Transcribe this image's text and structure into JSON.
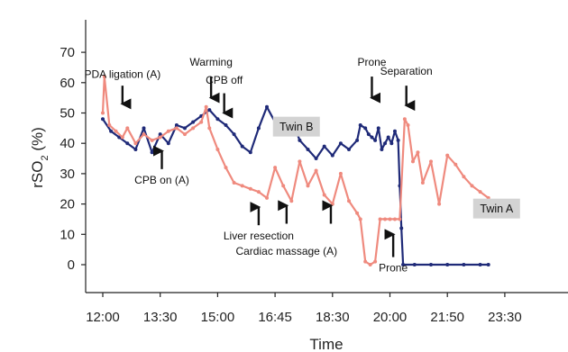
{
  "chart_data": {
    "type": "line",
    "xlabel": "Time",
    "ylabel": "rSO2 (%)",
    "x_ticks": [
      "12:00",
      "13:30",
      "15:00",
      "16:45",
      "18:30",
      "20:00",
      "21:50",
      "23:30"
    ],
    "ylim": [
      -10,
      70
    ],
    "y_ticks": [
      0,
      10,
      20,
      30,
      40,
      50,
      60,
      70
    ],
    "grid": false,
    "colors": {
      "twin_b": "#1f2a78",
      "twin_a": "#ef8a7e"
    },
    "series_labels": [
      {
        "name": "Twin B",
        "series": "twin_b",
        "x": 17.9,
        "y": 45.5
      },
      {
        "name": "Twin A",
        "series": "twin_a",
        "x": 24.0,
        "y": 18.5
      }
    ],
    "annotations": [
      {
        "text": "PDA ligation (A)",
        "x": 12.6,
        "y": 61,
        "arrow_from": 59,
        "arrow_to": 53,
        "label_pos": "above"
      },
      {
        "text": "CPB on (A)",
        "x": 13.8,
        "y": 31.5,
        "arrow_from": 31.5,
        "arrow_to": 37.5,
        "label_pos": "below"
      },
      {
        "text": "Warming",
        "x": 15.3,
        "y": 65,
        "arrow_from": 62,
        "arrow_to": 55,
        "label_pos": "above"
      },
      {
        "text": "CPB off",
        "x": 15.7,
        "y": 59,
        "arrow_from": 56.5,
        "arrow_to": 50,
        "label_pos": "above"
      },
      {
        "text": "Liver resection",
        "x": 16.75,
        "y": 13,
        "arrow_from": 13,
        "arrow_to": 19,
        "label_pos": "below"
      },
      {
        "text": "Cardiac massage (A)",
        "x": 17.6,
        "y": 8,
        "arrow_from": 13.5,
        "arrow_to": 19.5,
        "label_pos": "below",
        "extra_arrows_x": [
          18.95
        ]
      },
      {
        "text": "Prone",
        "x": 20.2,
        "y": 65,
        "arrow_from": 62,
        "arrow_to": 55,
        "label_pos": "above"
      },
      {
        "text": "Separation",
        "x": 21.25,
        "y": 62,
        "arrow_from": 59,
        "arrow_to": 52.5,
        "label_pos": "above"
      },
      {
        "text": "Prone",
        "x": 20.85,
        "y": 2.5,
        "arrow_from": 2.5,
        "arrow_to": 10,
        "label_pos": "below"
      }
    ],
    "series": [
      {
        "key": "twin_b",
        "name": "Twin B",
        "x": [
          12.0,
          12.25,
          12.5,
          12.75,
          13.0,
          13.25,
          13.5,
          13.75,
          14.0,
          14.25,
          14.5,
          14.75,
          15.0,
          15.25,
          15.5,
          15.75,
          16.0,
          16.25,
          16.5,
          16.75,
          17.0,
          17.25,
          17.5,
          17.75,
          18.0,
          18.25,
          18.5,
          18.75,
          19.0,
          19.25,
          19.5,
          19.75,
          19.85,
          20.0,
          20.1,
          20.2,
          20.3,
          20.4,
          20.5,
          20.6,
          20.7,
          20.8,
          20.9,
          21.0,
          21.05,
          21.1,
          21.15,
          21.5,
          22.0,
          22.5,
          23.0,
          23.5,
          23.75
        ],
        "y": [
          48,
          44,
          42,
          40,
          38,
          45,
          37,
          43,
          40,
          46,
          45,
          47,
          49,
          51,
          48,
          46,
          43,
          39,
          37,
          45,
          52,
          47,
          43,
          48,
          41,
          38,
          35,
          39,
          36,
          40,
          38,
          41,
          46,
          45,
          43,
          42,
          41,
          45,
          38,
          40,
          42,
          40,
          44,
          41,
          26,
          12,
          0,
          0,
          0,
          0,
          0,
          0,
          0
        ]
      },
      {
        "key": "twin_a",
        "name": "Twin A",
        "x": [
          12.0,
          12.05,
          12.2,
          12.4,
          12.6,
          12.75,
          13.0,
          13.25,
          13.5,
          13.75,
          14.0,
          14.25,
          14.5,
          14.75,
          15.0,
          15.15,
          15.25,
          15.5,
          15.75,
          16.0,
          16.25,
          16.5,
          16.75,
          17.0,
          17.25,
          17.5,
          17.75,
          18.0,
          18.25,
          18.5,
          18.75,
          19.0,
          19.25,
          19.5,
          19.75,
          19.85,
          20.0,
          20.15,
          20.3,
          20.45,
          20.6,
          20.75,
          20.9,
          21.05,
          21.2,
          21.3,
          21.45,
          21.6,
          21.75,
          22.0,
          22.25,
          22.5,
          22.75,
          23.0,
          23.25,
          23.5,
          23.75
        ],
        "y": [
          50,
          62,
          46,
          44,
          42,
          45,
          40,
          43,
          41,
          42,
          44,
          45,
          43,
          45,
          47,
          52,
          45,
          38,
          32,
          27,
          26,
          25,
          24,
          22,
          32,
          26,
          21,
          34,
          26,
          31,
          23,
          20,
          30,
          21,
          17,
          15,
          1,
          0,
          1,
          15,
          15,
          15,
          15,
          15,
          48,
          46,
          34,
          37,
          27,
          34,
          20,
          36,
          33,
          29,
          26,
          24,
          22
        ]
      }
    ]
  }
}
